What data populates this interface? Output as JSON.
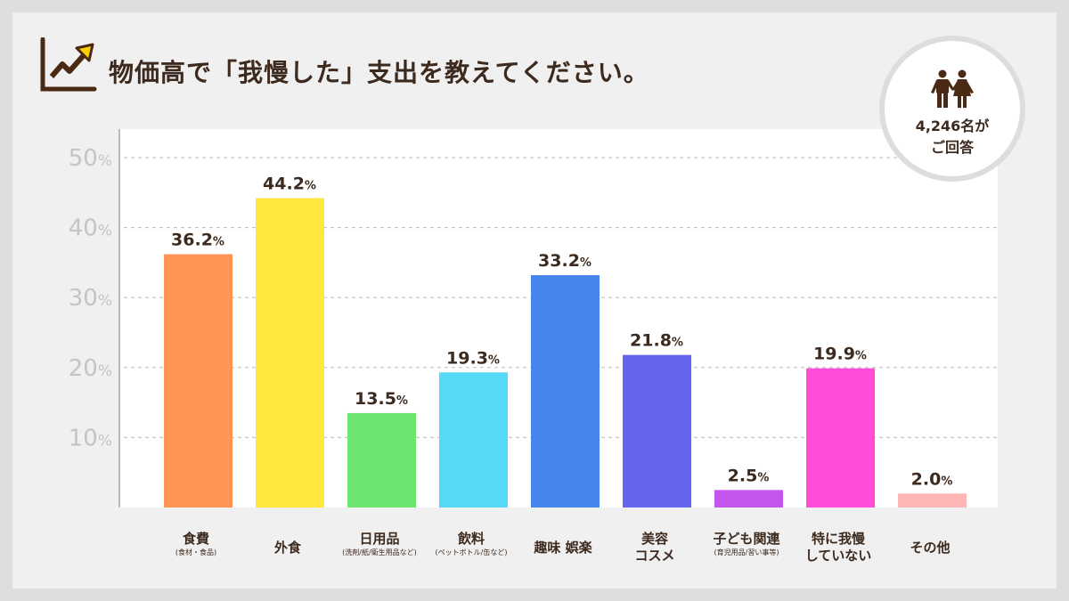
{
  "title": "物価高で「我慢した」支出を教えてください。",
  "badge": {
    "icon": "couple-icon",
    "count": "4,246名が",
    "label": "ご回答"
  },
  "chart_data": {
    "type": "bar",
    "title": "物価高で「我慢した」支出を教えてください。",
    "ylim": [
      0,
      50
    ],
    "yticks": [
      "10%",
      "20%",
      "30%",
      "40%",
      "50%"
    ],
    "grid": true,
    "categories": [
      {
        "label": "食費",
        "sub": "(食材・食品)"
      },
      {
        "label": "外食",
        "sub": ""
      },
      {
        "label": "日用品",
        "sub": "(洗剤/紙/衛生用品など)"
      },
      {
        "label": "飲料",
        "sub": "(ペットボトル/缶など)"
      },
      {
        "label": "趣味 娯楽",
        "sub": ""
      },
      {
        "label": "美容\nコスメ",
        "sub": ""
      },
      {
        "label": "子ども関連",
        "sub": "(育児用品/習い事等)"
      },
      {
        "label": "特に我慢\nしていない",
        "sub": ""
      },
      {
        "label": "その他",
        "sub": ""
      }
    ],
    "values": [
      36.2,
      44.2,
      13.5,
      19.3,
      33.2,
      21.8,
      2.5,
      19.9,
      2.0
    ],
    "data_labels": [
      "36.2",
      "44.2",
      "13.5",
      "19.3",
      "33.2",
      "21.8",
      "2.5",
      "19.9",
      "2.0"
    ],
    "unit": "%",
    "colors": [
      "#ff9455",
      "#ffe73d",
      "#6de56f",
      "#55d9f6",
      "#4686ec",
      "#6464ee",
      "#c455ef",
      "#ff4cd9",
      "#ffb6b6"
    ]
  }
}
